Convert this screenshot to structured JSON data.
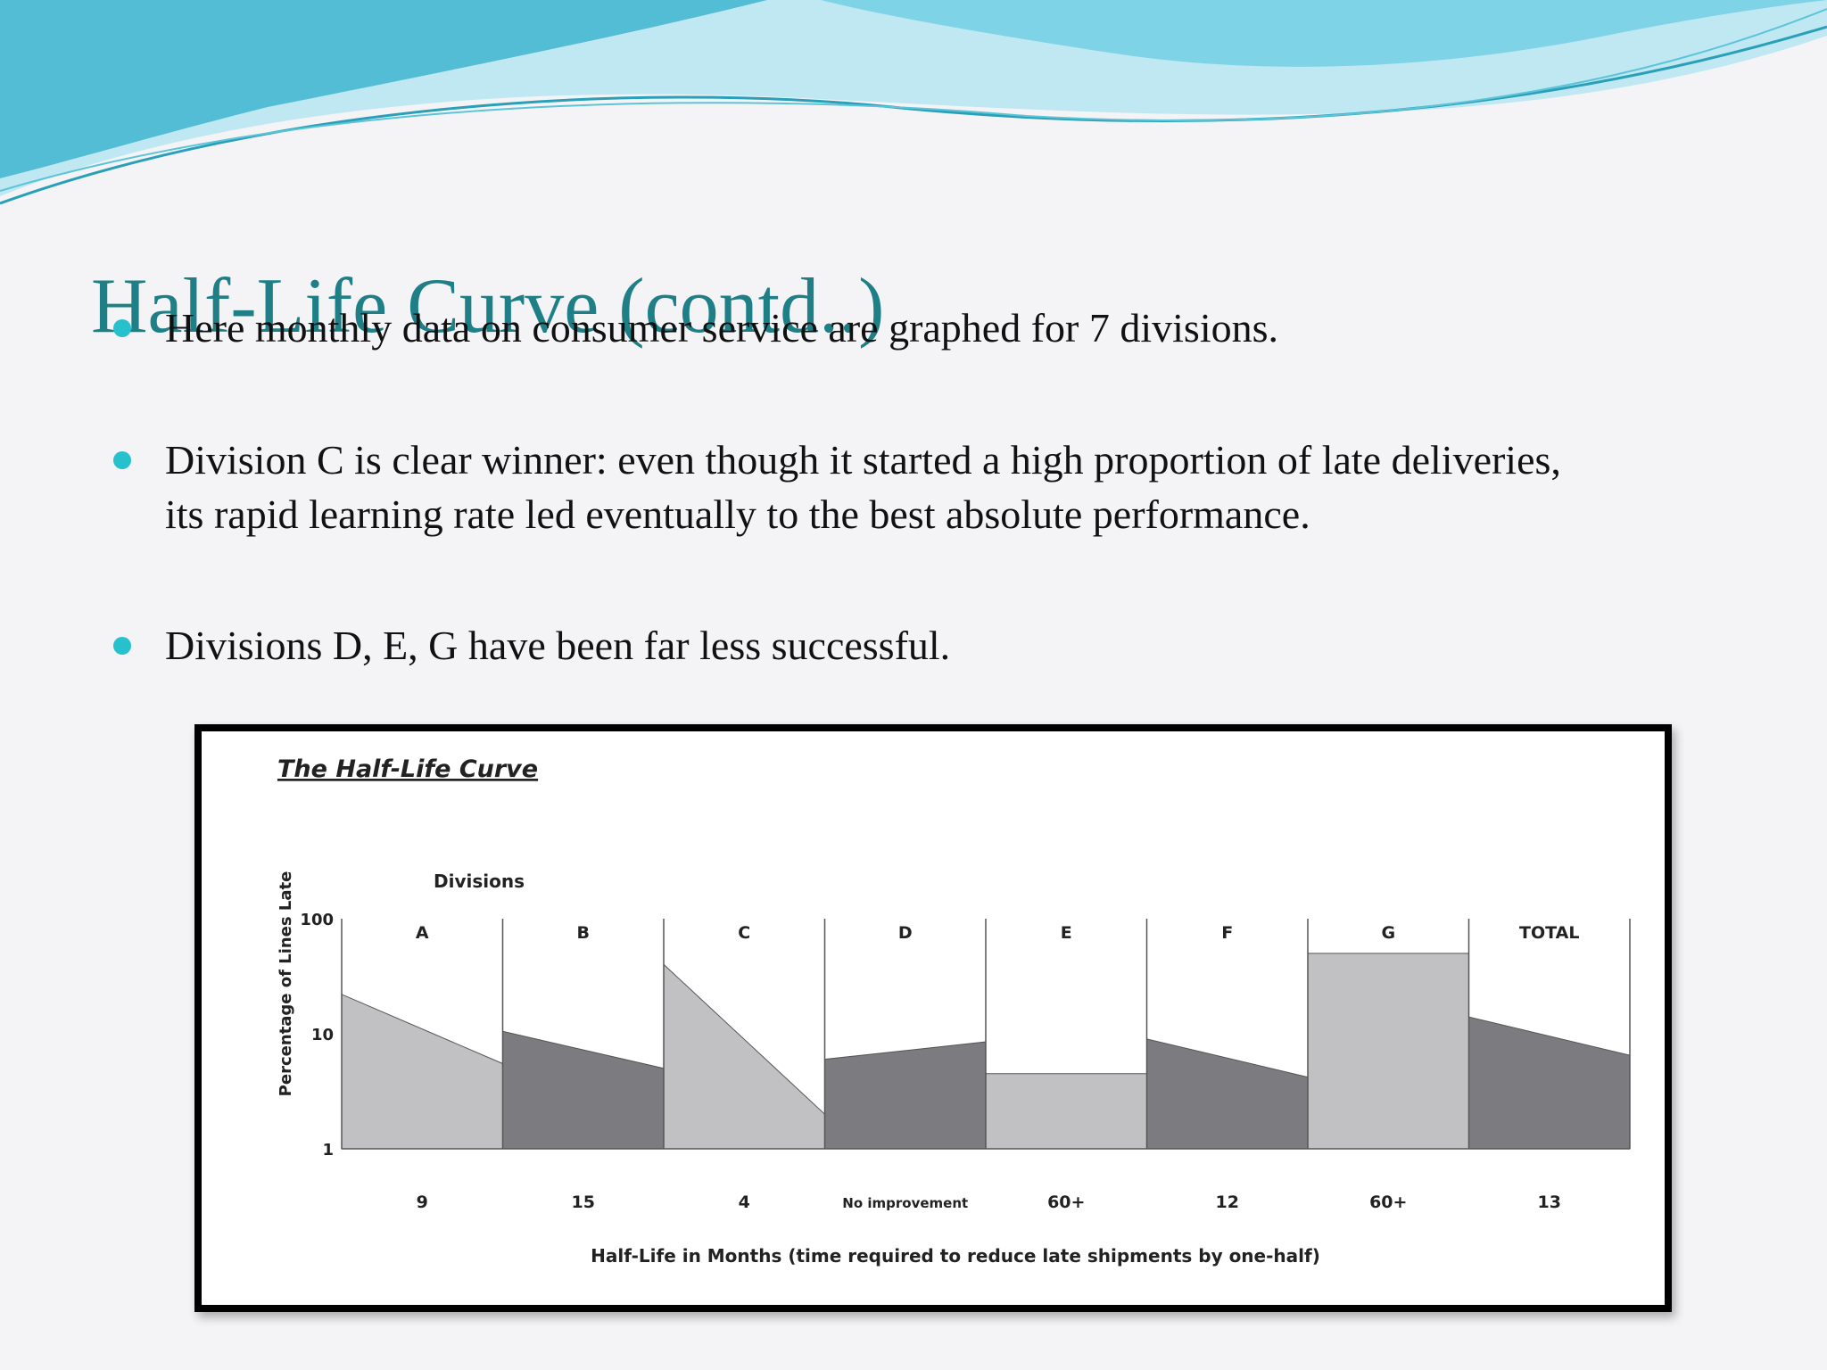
{
  "slide": {
    "title": "Half-Life Curve (contd..)",
    "bullets": [
      "Here monthly data on consumer service are graphed for 7 divisions.",
      "Division C is clear winner: even though it started a high proportion of late deliveries,",
      "its rapid learning rate led eventually to the best absolute performance.",
      "Divisions D, E, G have been far less successful."
    ]
  },
  "colors": {
    "title": "#1e7f87",
    "bullet_dot": "#27c0cd",
    "wave_light": "#bfe8f2",
    "wave_mid": "#7fd3e6",
    "wave_dark": "#3fb5d0",
    "panel_light": "#c1c1c3",
    "panel_dark": "#7c7b80"
  },
  "chart_data": {
    "type": "area",
    "title": "The Half-Life Curve",
    "group_label": "Divisions",
    "ylabel": "Percentage of Lines Late",
    "xlabel": "Half-Life in Months (time required to reduce late shipments by one-half)",
    "y_scale": "log",
    "ylim": [
      1,
      100
    ],
    "y_ticks": [
      "100",
      "10",
      "1"
    ],
    "panels": [
      {
        "name": "A",
        "start": 22,
        "end": 5.5,
        "half_life": "9",
        "shade": "light"
      },
      {
        "name": "B",
        "start": 10.5,
        "end": 5,
        "half_life": "15",
        "shade": "dark"
      },
      {
        "name": "C",
        "start": 40,
        "end": 2,
        "half_life": "4",
        "shade": "light"
      },
      {
        "name": "D",
        "start": 6,
        "end": 8.5,
        "half_life": "No improvement",
        "shade": "dark"
      },
      {
        "name": "E",
        "start": 4.5,
        "end": 4.5,
        "half_life": "60+",
        "shade": "light"
      },
      {
        "name": "F",
        "start": 9,
        "end": 4.2,
        "half_life": "12",
        "shade": "dark"
      },
      {
        "name": "G",
        "start": 50,
        "end": 50,
        "half_life": "60+",
        "shade": "light"
      },
      {
        "name": "TOTAL",
        "start": 14,
        "end": 6.5,
        "half_life": "13",
        "shade": "dark"
      }
    ]
  }
}
